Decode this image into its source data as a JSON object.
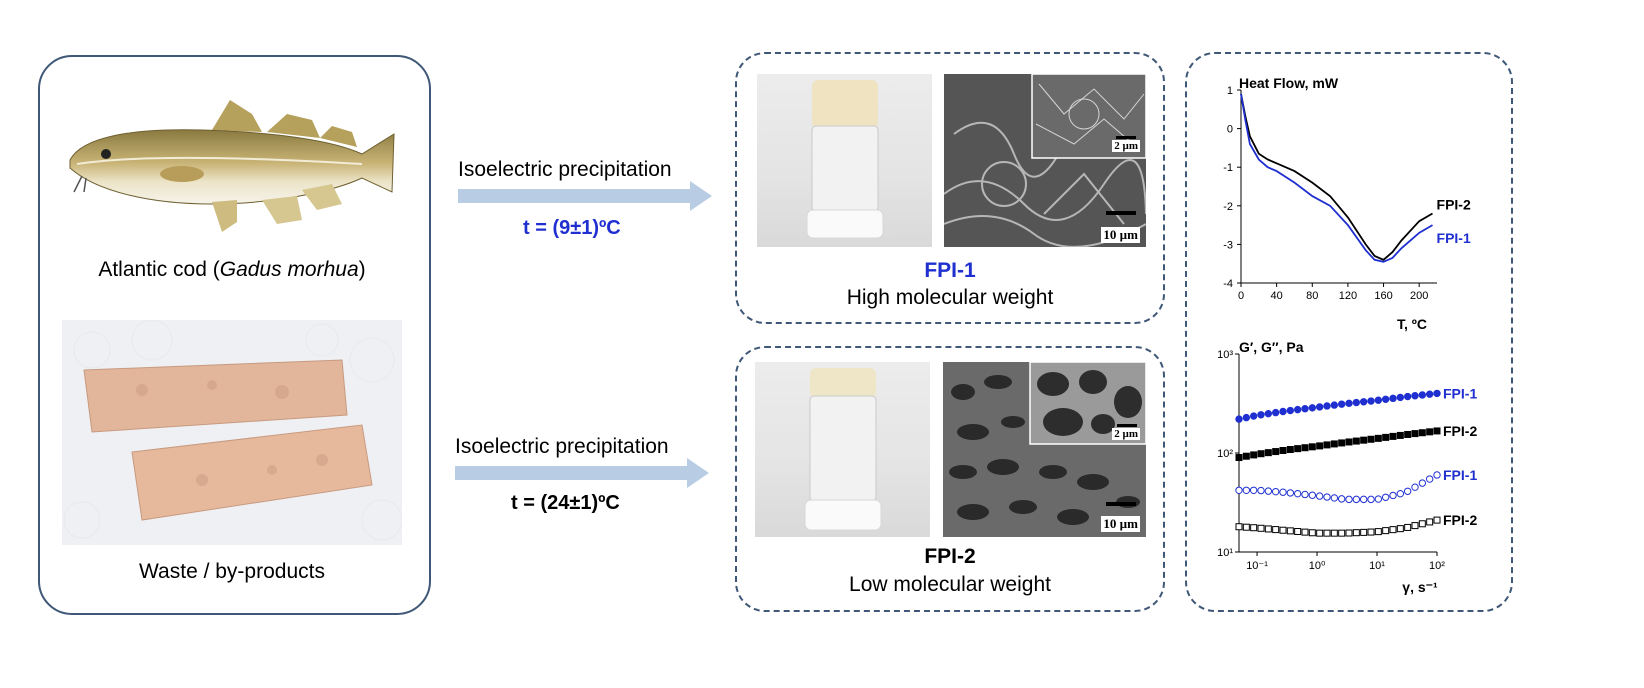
{
  "source": {
    "fish_caption_prefix": "Atlantic cod (",
    "fish_caption_italic": "Gadus morhua",
    "fish_caption_suffix": ")",
    "waste_caption": "Waste / by-products"
  },
  "process_1": {
    "method": "Isoelectric precipitation",
    "temperature": "t = (9±1)ºC"
  },
  "process_2": {
    "method": "Isoelectric precipitation",
    "temperature": "t = (24±1)ºC"
  },
  "fpi1": {
    "name": "FPI-1",
    "description": "High molecular weight",
    "scale_main": "10 µm",
    "scale_inset": "2 µm"
  },
  "fpi2": {
    "name": "FPI-2",
    "description": "Low molecular weight",
    "scale_main": "10 µm",
    "scale_inset": "2 µm"
  },
  "colors": {
    "border": "#3f5877",
    "arrow": "#b8cce4",
    "fpi1": "#1f2fd0",
    "fpi2": "#000000"
  },
  "chart_data": [
    {
      "type": "line",
      "ylabel": "Heat Flow, mW",
      "xlabel": "T, ºC",
      "xlim": [
        0,
        220
      ],
      "ylim": [
        -4,
        1
      ],
      "xticks": [
        "0",
        "40",
        "80",
        "120",
        "160",
        "200"
      ],
      "yticks": [
        "1",
        "0",
        "-1",
        "-2",
        "-3",
        "-4"
      ],
      "series": [
        {
          "name": "FPI-2",
          "color": "#000000",
          "x": [
            0,
            5,
            10,
            20,
            30,
            40,
            60,
            80,
            100,
            120,
            140,
            150,
            160,
            170,
            180,
            200,
            215
          ],
          "y": [
            0.9,
            0.3,
            -0.2,
            -0.65,
            -0.8,
            -0.9,
            -1.1,
            -1.4,
            -1.75,
            -2.3,
            -3.0,
            -3.3,
            -3.4,
            -3.2,
            -2.9,
            -2.4,
            -2.2
          ]
        },
        {
          "name": "FPI-1",
          "color": "#1f2fd0",
          "x": [
            0,
            5,
            10,
            20,
            30,
            40,
            60,
            80,
            100,
            120,
            140,
            150,
            160,
            170,
            180,
            200,
            215
          ],
          "y": [
            0.9,
            0.2,
            -0.4,
            -0.8,
            -1.0,
            -1.1,
            -1.4,
            -1.75,
            -2.0,
            -2.5,
            -3.15,
            -3.4,
            -3.45,
            -3.35,
            -3.1,
            -2.7,
            -2.5
          ]
        }
      ]
    },
    {
      "type": "scatter",
      "ylabel": "G′, G″, Pa",
      "xlabel": "γ, s⁻¹",
      "xscale": "log",
      "yscale": "log",
      "xlim": [
        0.05,
        100
      ],
      "ylim": [
        10,
        1000
      ],
      "xticks": [
        "10⁻¹",
        "10⁰",
        "10¹",
        "10²"
      ],
      "yticks": [
        "10³",
        "10²",
        "10¹"
      ],
      "series": [
        {
          "name": "FPI-1",
          "modulus": "G′",
          "color": "#1f2fd0",
          "filled": true,
          "x": [
            0.05,
            0.1,
            0.3,
            1,
            3,
            10,
            30,
            100
          ],
          "y": [
            220,
            240,
            265,
            290,
            315,
            340,
            370,
            400
          ]
        },
        {
          "name": "FPI-2",
          "modulus": "G′",
          "color": "#000000",
          "filled": true,
          "x": [
            0.05,
            0.1,
            0.3,
            1,
            3,
            10,
            30,
            100
          ],
          "y": [
            90,
            97,
            107,
            117,
            128,
            140,
            153,
            167
          ]
        },
        {
          "name": "FPI-1",
          "modulus": "G″",
          "color": "#1f2fd0",
          "filled": false,
          "x": [
            0.05,
            0.1,
            0.3,
            1,
            3,
            10,
            30,
            100
          ],
          "y": [
            42,
            42,
            40,
            37,
            34,
            34,
            40,
            60
          ]
        },
        {
          "name": "FPI-2",
          "modulus": "G″",
          "color": "#000000",
          "filled": false,
          "x": [
            0.05,
            0.1,
            0.3,
            1,
            3,
            10,
            30,
            100
          ],
          "y": [
            18,
            17.5,
            16.5,
            15.5,
            15.5,
            16,
            17.5,
            21
          ]
        }
      ]
    }
  ]
}
